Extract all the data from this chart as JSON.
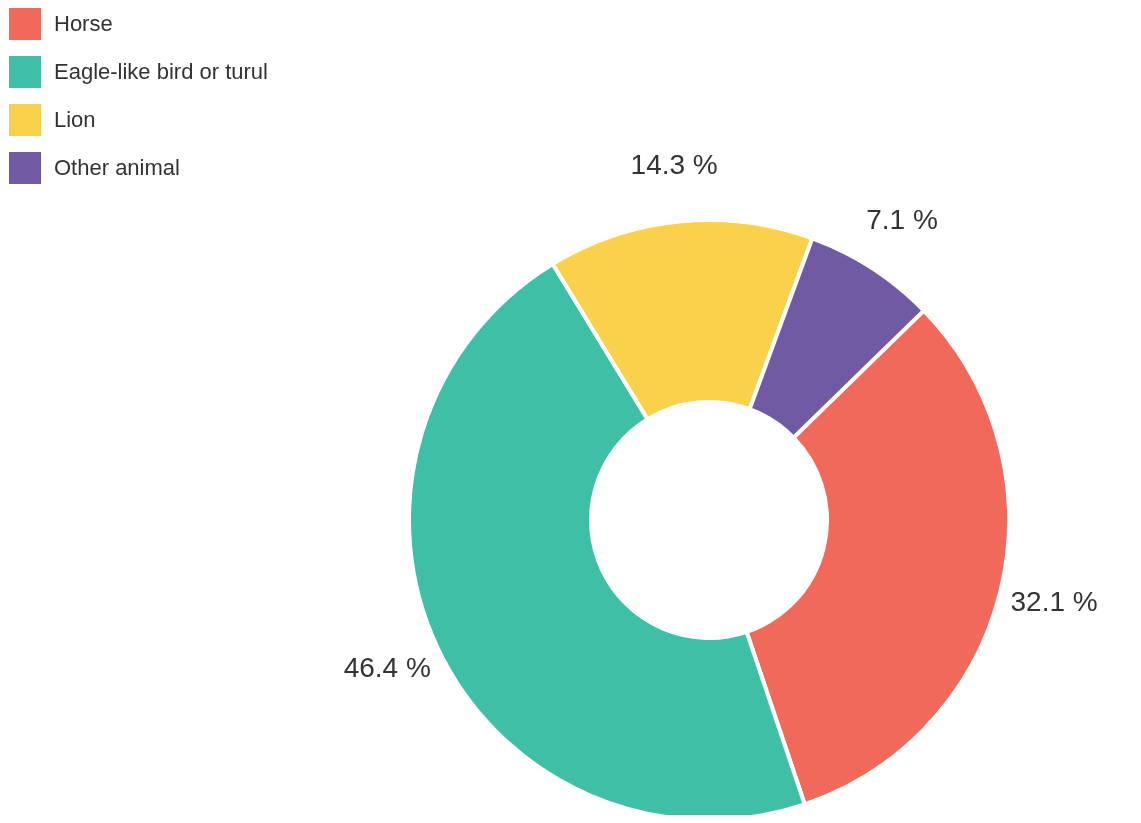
{
  "chart_data": {
    "type": "donut",
    "categories": [
      "Horse",
      "Eagle-like bird or turul",
      "Lion",
      "Other animal"
    ],
    "values": [
      32.1,
      46.4,
      14.3,
      7.1
    ],
    "value_labels": [
      "32.1 %",
      "46.4 %",
      "14.3 %",
      "7.1 %"
    ],
    "colors": [
      "#f1695b",
      "#3fbfa5",
      "#f9d14a",
      "#715aa4"
    ],
    "legend": "top left"
  }
}
